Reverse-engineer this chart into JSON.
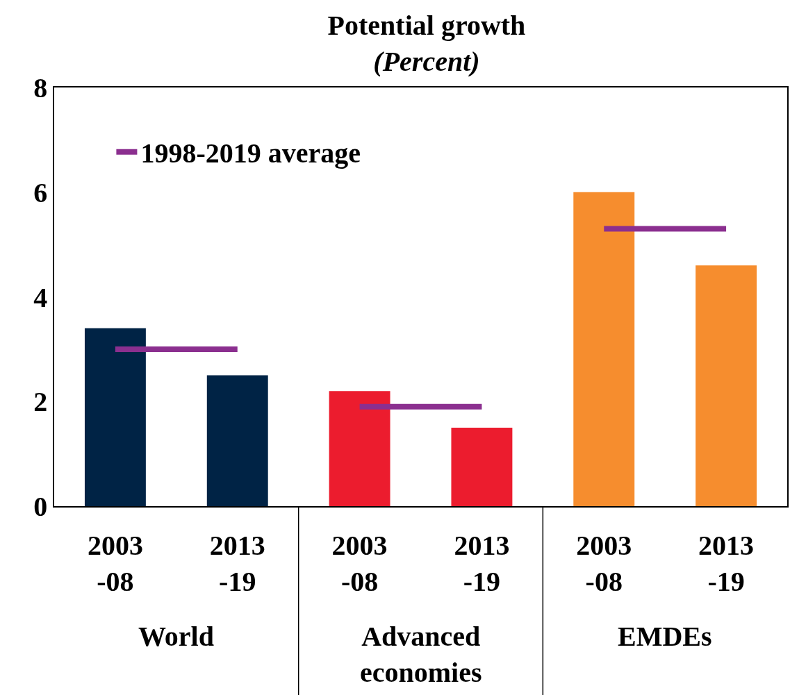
{
  "chart_data": {
    "type": "bar",
    "title": "Potential growth",
    "subtitle": "(Percent)",
    "categories": [
      "2003\n-08",
      "2013\n-19",
      "2003\n-08",
      "2013\n-19",
      "2003\n-08",
      "2013\n-19"
    ],
    "series": [
      {
        "colors": [
          "#002345",
          "#002345",
          "#ec1c2e",
          "#ec1c2e",
          "#f68d2e",
          "#f68d2e"
        ],
        "values": [
          3.4,
          2.5,
          2.2,
          1.5,
          6.0,
          4.6
        ]
      },
      {
        "type": "line",
        "name": "1998-2019 average",
        "color": "#8b2f8f",
        "values": [
          3.0,
          3.0,
          null,
          null,
          null,
          null
        ]
      },
      {
        "type": "line",
        "color": "#8b2f8f",
        "values": [
          null,
          null,
          1.9,
          1.9,
          null,
          null
        ]
      },
      {
        "type": "line",
        "color": "#8b2f8f",
        "values": [
          null,
          null,
          null,
          null,
          5.3,
          5.3
        ]
      }
    ],
    "annotations": [
      "World",
      "Advanced\neconomies",
      "EMDEs"
    ],
    "ylim": [
      0,
      8
    ],
    "yticks": [
      0,
      2,
      4,
      6,
      8
    ],
    "grid": false,
    "legend": "top left"
  }
}
